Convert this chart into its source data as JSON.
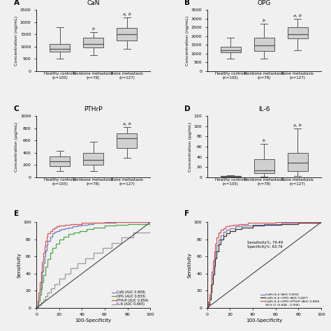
{
  "panels": {
    "A": {
      "title": "CaN",
      "ylabel": "Concentration (ng/mL)",
      "ylim": [
        0,
        2500
      ],
      "yticks": [
        0,
        500,
        1000,
        1500,
        2000,
        2500
      ],
      "groups": [
        "Healthy controls\n(n=105)",
        "Nonbone metastasis\n(n=78)",
        "Bone metastasis\n(n=127)"
      ],
      "boxes": [
        {
          "q1": 800,
          "median": 900,
          "q3": 1100,
          "whislo": 500,
          "whishi": 1800
        },
        {
          "q1": 950,
          "median": 1100,
          "q3": 1350,
          "whislo": 650,
          "whishi": 1600
        },
        {
          "q1": 1250,
          "median": 1500,
          "q3": 1750,
          "whislo": 900,
          "whishi": 2200
        }
      ],
      "sig": [
        "",
        "b",
        "a, b"
      ]
    },
    "B": {
      "title": "OPG",
      "ylabel": "Concentration (ng/mL)",
      "ylim": [
        0,
        3500
      ],
      "yticks": [
        0,
        500,
        1000,
        1500,
        2000,
        2500,
        3000,
        3500
      ],
      "groups": [
        "Healthy controls\n(n=105)",
        "Nonbone metastasis\n(n=78)",
        "Bone metastasis\n(n=127)"
      ],
      "boxes": [
        {
          "q1": 1050,
          "median": 1200,
          "q3": 1400,
          "whislo": 700,
          "whishi": 1900
        },
        {
          "q1": 1150,
          "median": 1450,
          "q3": 1900,
          "whislo": 700,
          "whishi": 2700
        },
        {
          "q1": 1850,
          "median": 2100,
          "q3": 2500,
          "whislo": 1200,
          "whishi": 3000
        }
      ],
      "sig": [
        "",
        "b",
        "a, b"
      ]
    },
    "C": {
      "title": "PTHrP",
      "ylabel": "Concentration (pg/mL)",
      "ylim": [
        0,
        1000
      ],
      "yticks": [
        0,
        200,
        400,
        600,
        800,
        1000
      ],
      "groups": [
        "Healthy controls\n(n=105)",
        "Nonbone metastasis\n(n=78)",
        "Bone metastasis\n(n=127)"
      ],
      "boxes": [
        {
          "q1": 180,
          "median": 260,
          "q3": 340,
          "whislo": 100,
          "whishi": 430
        },
        {
          "q1": 200,
          "median": 280,
          "q3": 400,
          "whislo": 100,
          "whishi": 580
        },
        {
          "q1": 480,
          "median": 640,
          "q3": 720,
          "whislo": 320,
          "whishi": 820
        }
      ],
      "sig": [
        "",
        "",
        "a, b"
      ]
    },
    "D": {
      "title": "IL-6",
      "ylabel": "Concentration (pg/mL)",
      "ylim": [
        0,
        120
      ],
      "yticks": [
        0,
        20,
        40,
        60,
        80,
        100,
        120
      ],
      "groups": [
        "Healthy controls\n(n=105)",
        "Nonbone metastasis\n(n=78)",
        "Bone metastasis\n(n=127)"
      ],
      "boxes": [
        {
          "q1": 1,
          "median": 2,
          "q3": 3,
          "whislo": 0,
          "whishi": 4
        },
        {
          "q1": 8,
          "median": 14,
          "q3": 35,
          "whislo": 1,
          "whishi": 65
        },
        {
          "q1": 12,
          "median": 28,
          "q3": 48,
          "whislo": 3,
          "whishi": 95
        }
      ],
      "sig": [
        "",
        "b",
        "a, b"
      ]
    }
  },
  "roc_E": {
    "legend": [
      "CaN (AUC 0.808)",
      "OPG (AUC 0.833)",
      "PTHrP (AUC 0.854)",
      "IL-6 (AUC 0.665)"
    ],
    "colors": [
      "#7777bb",
      "#44aa44",
      "#dd5555",
      "#999999"
    ],
    "curves_x": [
      [
        0,
        1,
        2,
        3,
        4,
        5,
        6,
        7,
        8,
        9,
        10,
        12,
        14,
        16,
        18,
        20,
        22,
        25,
        28,
        32,
        36,
        40,
        45,
        50,
        60,
        70,
        80,
        100
      ],
      [
        0,
        1,
        2,
        3,
        4,
        5,
        6,
        8,
        10,
        12,
        14,
        17,
        20,
        24,
        28,
        33,
        38,
        44,
        50,
        60,
        70,
        80,
        100
      ],
      [
        0,
        1,
        2,
        3,
        4,
        5,
        6,
        7,
        8,
        9,
        10,
        12,
        14,
        16,
        18,
        20,
        25,
        30,
        40,
        50,
        60,
        80,
        100
      ],
      [
        0,
        2,
        4,
        6,
        8,
        10,
        13,
        16,
        20,
        25,
        30,
        36,
        43,
        50,
        58,
        66,
        75,
        85,
        100
      ]
    ],
    "curves_y": [
      [
        0,
        5,
        12,
        22,
        32,
        42,
        52,
        60,
        67,
        73,
        78,
        83,
        87,
        89,
        90,
        91,
        92,
        93,
        94,
        95,
        96,
        97,
        98,
        99,
        99,
        100,
        100,
        100
      ],
      [
        0,
        3,
        8,
        15,
        22,
        30,
        38,
        48,
        57,
        64,
        70,
        75,
        80,
        83,
        86,
        88,
        90,
        92,
        94,
        96,
        97,
        98,
        100
      ],
      [
        0,
        8,
        18,
        30,
        42,
        54,
        64,
        72,
        78,
        83,
        87,
        90,
        92,
        94,
        95,
        96,
        97,
        98,
        99,
        99,
        100,
        100,
        100
      ],
      [
        0,
        3,
        6,
        10,
        14,
        18,
        23,
        28,
        34,
        40,
        46,
        52,
        58,
        64,
        70,
        76,
        82,
        88,
        100
      ]
    ]
  },
  "roc_F": {
    "legend": [
      "CaN+IL-6 (AUC 0.894)",
      "CaN+IL-6+OPG (AUC 0.847)",
      "CaN+IL-6+OPG+PTHrP (AUC 0.899)",
      "95% CI (0.848 - 0.936)"
    ],
    "colors": [
      "#7777bb",
      "#333333",
      "#dd5555"
    ],
    "annotation": "Sensitivity%: 79.49\nSpecificity%: 83.76",
    "curves_x": [
      [
        0,
        1,
        2,
        3,
        4,
        5,
        6,
        7,
        8,
        10,
        12,
        14,
        17,
        20,
        25,
        30,
        40,
        50,
        65,
        80,
        100
      ],
      [
        0,
        1,
        2,
        3,
        4,
        5,
        6,
        7,
        8,
        10,
        12,
        14,
        17,
        20,
        25,
        30,
        40,
        50,
        65,
        80,
        100
      ],
      [
        0,
        1,
        2,
        3,
        4,
        5,
        6,
        7,
        8,
        10,
        12,
        14,
        16,
        19,
        23,
        28,
        36,
        46,
        60,
        75,
        100
      ]
    ],
    "curves_y": [
      [
        0,
        5,
        12,
        22,
        34,
        46,
        57,
        66,
        73,
        80,
        85,
        89,
        91,
        93,
        95,
        96,
        97,
        98,
        99,
        100,
        100
      ],
      [
        0,
        4,
        10,
        18,
        28,
        39,
        49,
        58,
        66,
        74,
        80,
        84,
        87,
        90,
        92,
        94,
        96,
        97,
        98,
        99,
        100
      ],
      [
        0,
        7,
        16,
        28,
        42,
        55,
        66,
        75,
        82,
        88,
        91,
        93,
        95,
        96,
        97,
        98,
        99,
        99,
        100,
        100,
        100
      ]
    ]
  },
  "box_color": "#d0d0d0",
  "box_linecolor": "#555555",
  "bg_color": "#f0f0f0"
}
